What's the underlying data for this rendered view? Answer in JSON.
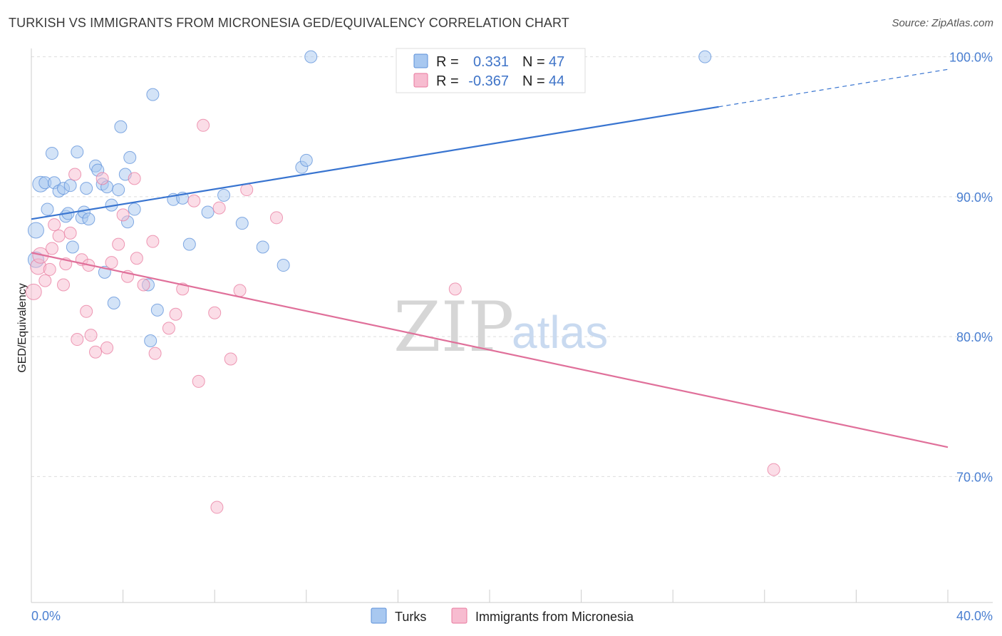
{
  "title": "TURKISH VS IMMIGRANTS FROM MICRONESIA GED/EQUIVALENCY CORRELATION CHART",
  "source": "Source: ZipAtlas.com",
  "watermark": {
    "zip": "ZIP",
    "atlas": "atlas"
  },
  "stats": [
    {
      "r_label": "R =",
      "r_value": "0.331",
      "n_label": "N =",
      "n_value": "47",
      "color": "#a8c8f0"
    },
    {
      "r_label": "R =",
      "r_value": "-0.367",
      "n_label": "N =",
      "n_value": "44",
      "color": "#f7bcd0"
    }
  ],
  "legend": [
    {
      "label": "Turks",
      "color": "#a8c8f0"
    },
    {
      "label": "Immigrants from Micronesia",
      "color": "#f7bcd0"
    }
  ],
  "chart_data": {
    "type": "scatter",
    "ylabel": "GED/Equivalency",
    "xlim": [
      0,
      40
    ],
    "ylim": [
      61,
      101
    ],
    "x_tick_labels": [
      "0.0%",
      "40.0%"
    ],
    "y_ticks": [
      70,
      80,
      90,
      100
    ],
    "y_tick_labels": [
      "70.0%",
      "80.0%",
      "90.0%",
      "100.0%"
    ],
    "grid": true,
    "series": [
      {
        "name": "Turks",
        "color": "#5b8fd9",
        "fill": "#a8c8f0",
        "points": [
          [
            0.2,
            85.5
          ],
          [
            0.2,
            87.6
          ],
          [
            0.4,
            90.9
          ],
          [
            0.6,
            91.0
          ],
          [
            0.7,
            89.1
          ],
          [
            0.9,
            93.1
          ],
          [
            1.0,
            91.0
          ],
          [
            1.2,
            90.4
          ],
          [
            1.4,
            90.6
          ],
          [
            1.5,
            88.6
          ],
          [
            1.6,
            88.8
          ],
          [
            1.7,
            90.8
          ],
          [
            1.8,
            86.4
          ],
          [
            2.0,
            93.2
          ],
          [
            2.2,
            88.5
          ],
          [
            2.3,
            88.9
          ],
          [
            2.4,
            90.6
          ],
          [
            2.5,
            88.4
          ],
          [
            2.8,
            92.2
          ],
          [
            2.9,
            91.9
          ],
          [
            3.1,
            90.9
          ],
          [
            3.2,
            84.6
          ],
          [
            3.3,
            90.7
          ],
          [
            3.5,
            89.4
          ],
          [
            3.6,
            82.4
          ],
          [
            3.8,
            90.5
          ],
          [
            3.9,
            95.0
          ],
          [
            4.1,
            91.6
          ],
          [
            4.2,
            88.2
          ],
          [
            4.3,
            92.8
          ],
          [
            4.5,
            89.1
          ],
          [
            5.1,
            83.7
          ],
          [
            5.2,
            79.7
          ],
          [
            5.3,
            97.3
          ],
          [
            5.5,
            81.9
          ],
          [
            6.2,
            89.8
          ],
          [
            6.6,
            89.9
          ],
          [
            6.9,
            86.6
          ],
          [
            7.7,
            88.9
          ],
          [
            8.4,
            90.1
          ],
          [
            9.2,
            88.1
          ],
          [
            10.1,
            86.4
          ],
          [
            11.0,
            85.1
          ],
          [
            11.8,
            92.1
          ],
          [
            12.0,
            92.6
          ],
          [
            12.2,
            100.0
          ],
          [
            29.4,
            100.0
          ]
        ],
        "trend": {
          "x": [
            0,
            30,
            40
          ],
          "y": [
            88.4,
            96.4,
            99.1
          ],
          "solid_until_x": 30
        }
      },
      {
        "name": "Immigrants from Micronesia",
        "color": "#e8799e",
        "fill": "#f7bcd0",
        "points": [
          [
            0.1,
            83.2
          ],
          [
            0.3,
            85.0
          ],
          [
            0.4,
            85.8
          ],
          [
            0.6,
            84.0
          ],
          [
            0.8,
            84.8
          ],
          [
            0.9,
            86.3
          ],
          [
            1.0,
            88.0
          ],
          [
            1.2,
            87.2
          ],
          [
            1.4,
            83.7
          ],
          [
            1.5,
            85.2
          ],
          [
            1.7,
            87.4
          ],
          [
            1.9,
            91.6
          ],
          [
            2.0,
            79.8
          ],
          [
            2.2,
            85.5
          ],
          [
            2.4,
            81.8
          ],
          [
            2.5,
            85.1
          ],
          [
            2.6,
            80.1
          ],
          [
            2.8,
            78.9
          ],
          [
            3.1,
            91.3
          ],
          [
            3.3,
            79.2
          ],
          [
            3.5,
            85.3
          ],
          [
            3.8,
            86.6
          ],
          [
            4.0,
            88.7
          ],
          [
            4.2,
            84.3
          ],
          [
            4.5,
            91.3
          ],
          [
            4.6,
            85.6
          ],
          [
            4.9,
            83.7
          ],
          [
            5.3,
            86.8
          ],
          [
            5.4,
            78.8
          ],
          [
            6.0,
            80.6
          ],
          [
            6.3,
            81.6
          ],
          [
            6.6,
            83.4
          ],
          [
            7.1,
            89.7
          ],
          [
            7.3,
            76.8
          ],
          [
            7.5,
            95.1
          ],
          [
            8.0,
            81.7
          ],
          [
            8.1,
            67.8
          ],
          [
            8.2,
            89.2
          ],
          [
            8.7,
            78.4
          ],
          [
            9.1,
            83.3
          ],
          [
            9.4,
            90.5
          ],
          [
            10.7,
            88.5
          ],
          [
            18.5,
            83.4
          ],
          [
            32.4,
            70.5
          ]
        ],
        "trend": {
          "x": [
            0,
            40
          ],
          "y": [
            86.0,
            72.1
          ],
          "solid_until_x": 40
        }
      }
    ]
  }
}
